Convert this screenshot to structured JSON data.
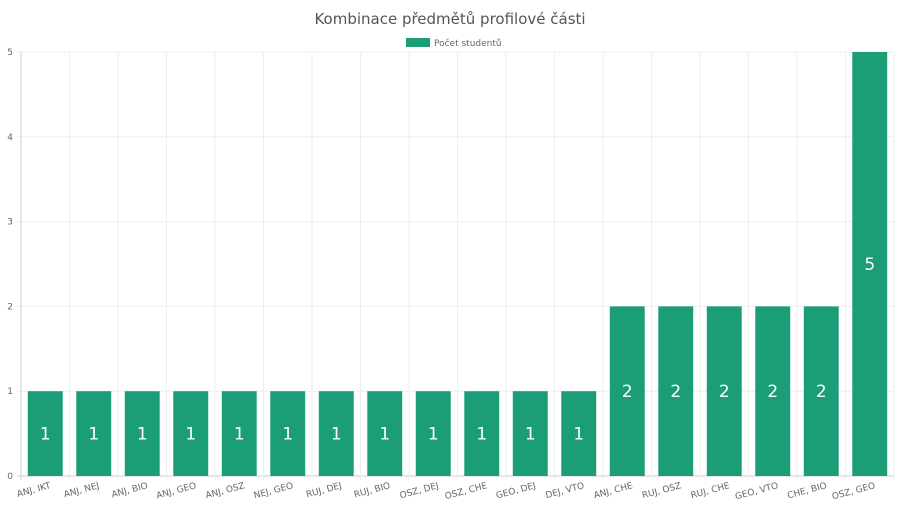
{
  "chart_data": {
    "type": "bar",
    "title": "Kombinace předmětů profilové části",
    "categories": [
      "ANJ, IKT",
      "ANJ, NEJ",
      "ANJ, BIO",
      "ANJ, GEO",
      "ANJ, OSZ",
      "NEJ, GEO",
      "RUJ, DEJ",
      "RUJ, BIO",
      "OSZ, DEJ",
      "OSZ, CHE",
      "GEO, DEJ",
      "DEJ, VTO",
      "ANJ, CHE",
      "RUJ, OSZ",
      "RUJ, CHE",
      "GEO, VTO",
      "CHE, BIO",
      "OSZ, GEO"
    ],
    "series": [
      {
        "name": "Počet studentů",
        "values": [
          1,
          1,
          1,
          1,
          1,
          1,
          1,
          1,
          1,
          1,
          1,
          1,
          2,
          2,
          2,
          2,
          2,
          5
        ],
        "color": "#1b9e77"
      }
    ],
    "ylim": [
      0,
      5
    ],
    "yticks": [
      0,
      1,
      2,
      3,
      4,
      5
    ],
    "grid": true,
    "legend": "top-center",
    "data_labels": true
  }
}
